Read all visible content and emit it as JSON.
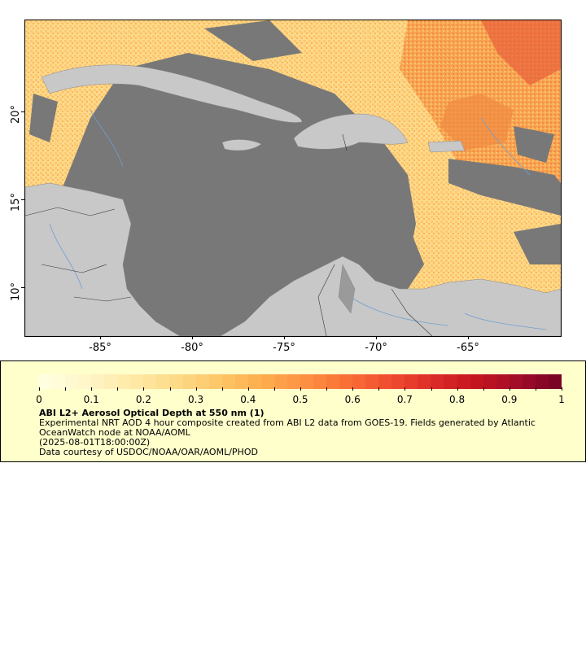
{
  "map": {
    "x_axis_labels": [
      "-85°",
      "-80°",
      "-75°",
      "-70°",
      "-65°"
    ],
    "y_axis_labels": [
      "20°",
      "15°",
      "10°"
    ],
    "colors": {
      "ocean_missing": "#787878",
      "land": "#c8c8c8",
      "rivers": "#6ea0d2",
      "borders": "#555555"
    }
  },
  "legend": {
    "title": "ABI L2+ Aerosol Optical Depth at 550 nm (1)",
    "description": "Experimental NRT AOD 4 hour composite created from ABI L2 data from GOES-19. Fields generated by Atlantic OceanWatch node at NOAA/AOML",
    "timestamp": "(2025-08-01T18:00:00Z)",
    "credit": "Data courtesy of USDOC/NOAA/OAR/AOML/PHOD",
    "tick_labels": [
      "0",
      "0.1",
      "0.2",
      "0.3",
      "0.4",
      "0.5",
      "0.6",
      "0.7",
      "0.8",
      "0.9",
      "1"
    ],
    "colormap": [
      "#ffffe0",
      "#fff5c8",
      "#ffeaa8",
      "#fddc8a",
      "#fdc86a",
      "#fdb050",
      "#fc9444",
      "#fa7336",
      "#f15030",
      "#e0302a",
      "#c8161e",
      "#a80e28",
      "#7a0426"
    ]
  }
}
